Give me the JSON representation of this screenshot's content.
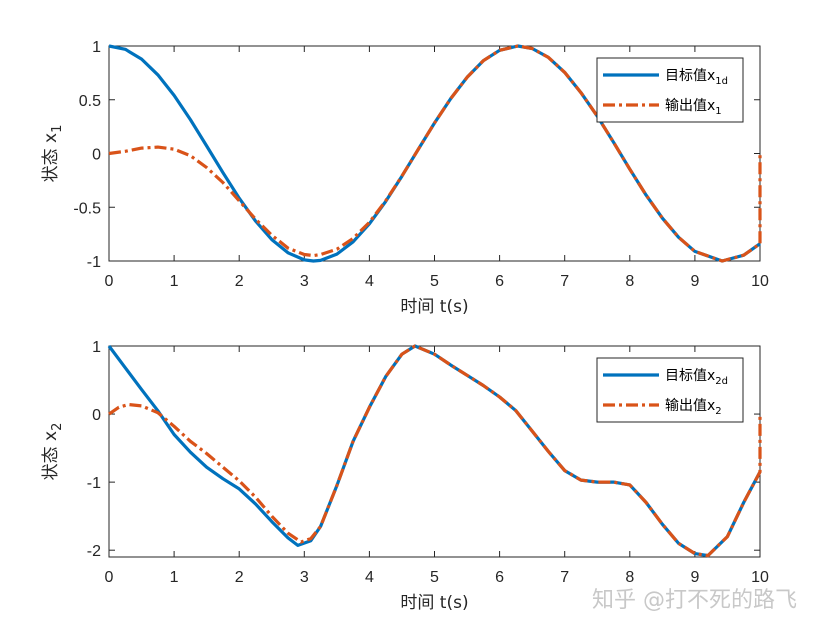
{
  "chart_data": [
    {
      "type": "line",
      "ylabel": "状态 x",
      "ylabel_sub": "1",
      "xlabel": "时间 t(s)",
      "xlim": [
        0,
        10
      ],
      "ylim": [
        -1,
        1
      ],
      "xticks": [
        "0",
        "1",
        "2",
        "3",
        "4",
        "5",
        "6",
        "7",
        "8",
        "9",
        "10"
      ],
      "yticks": [
        "1",
        "0.5",
        "0",
        "-0.5",
        "-1"
      ],
      "ytick_values": [
        1,
        0.5,
        0,
        -0.5,
        -1
      ],
      "legend_position": "top-right",
      "series": [
        {
          "name": "目标值x",
          "name_sub": "1d",
          "style": "solid",
          "color": "#0072BD",
          "x": [
            0,
            0.25,
            0.5,
            0.75,
            1,
            1.25,
            1.5,
            1.75,
            2,
            2.25,
            2.5,
            2.75,
            3,
            3.14,
            3.25,
            3.5,
            3.75,
            4,
            4.25,
            4.5,
            4.75,
            5,
            5.25,
            5.5,
            5.75,
            6,
            6.28,
            6.5,
            6.75,
            7,
            7.25,
            7.5,
            7.75,
            8,
            8.25,
            8.5,
            8.75,
            9,
            9.42,
            9.75,
            10
          ],
          "y": [
            1,
            0.969,
            0.878,
            0.732,
            0.54,
            0.315,
            0.071,
            -0.178,
            -0.416,
            -0.628,
            -0.801,
            -0.924,
            -0.99,
            -1,
            -0.994,
            -0.936,
            -0.821,
            -0.654,
            -0.446,
            -0.211,
            0.038,
            0.284,
            0.512,
            0.709,
            0.863,
            0.96,
            1,
            0.977,
            0.894,
            0.754,
            0.566,
            0.347,
            0.105,
            -0.146,
            -0.387,
            -0.602,
            -0.78,
            -0.911,
            -1,
            -0.946,
            -0.839
          ]
        },
        {
          "name": "输出值x",
          "name_sub": "1",
          "style": "dashdot",
          "color": "#D95319",
          "x": [
            0,
            0.25,
            0.5,
            0.75,
            1,
            1.25,
            1.5,
            1.75,
            2,
            2.25,
            2.5,
            2.75,
            3,
            3.14,
            3.25,
            3.5,
            3.75,
            4,
            4.25,
            4.5,
            4.75,
            5,
            5.25,
            5.5,
            5.75,
            6,
            6.28,
            6.5,
            6.75,
            7,
            7.25,
            7.5,
            7.75,
            8,
            8.25,
            8.5,
            8.75,
            9,
            9.42,
            9.75,
            10,
            10
          ],
          "y": [
            0,
            0.02,
            0.05,
            0.06,
            0.04,
            -0.02,
            -0.13,
            -0.27,
            -0.44,
            -0.61,
            -0.76,
            -0.88,
            -0.94,
            -0.95,
            -0.94,
            -0.89,
            -0.79,
            -0.64,
            -0.44,
            -0.21,
            0.038,
            0.284,
            0.512,
            0.709,
            0.863,
            0.96,
            1,
            0.977,
            0.894,
            0.754,
            0.566,
            0.347,
            0.105,
            -0.146,
            -0.387,
            -0.602,
            -0.78,
            -0.911,
            -1,
            -0.946,
            -0.839,
            0
          ]
        }
      ]
    },
    {
      "type": "line",
      "ylabel": "状态 x",
      "ylabel_sub": "2",
      "xlabel": "时间 t(s)",
      "xlim": [
        0,
        10
      ],
      "ylim": [
        -2.1,
        1
      ],
      "xticks": [
        "0",
        "1",
        "2",
        "3",
        "4",
        "5",
        "6",
        "7",
        "8",
        "9",
        "10"
      ],
      "yticks": [
        "1",
        "0",
        "-1",
        "-2"
      ],
      "ytick_values": [
        1,
        0,
        -1,
        -2
      ],
      "legend_position": "top-right",
      "series": [
        {
          "name": "目标值x",
          "name_sub": "2d",
          "style": "solid",
          "color": "#0072BD",
          "x": [
            0,
            0.25,
            0.5,
            0.75,
            1,
            1.25,
            1.5,
            1.75,
            2,
            2.25,
            2.5,
            2.75,
            2.9,
            3.1,
            3.25,
            3.5,
            3.75,
            4,
            4.25,
            4.5,
            4.7,
            5,
            5.25,
            5.5,
            5.75,
            6,
            6.25,
            6.5,
            6.75,
            7,
            7.25,
            7.5,
            7.75,
            8,
            8.25,
            8.5,
            8.75,
            9,
            9.2,
            9.5,
            9.75,
            10
          ],
          "y": [
            1,
            0.68,
            0.36,
            0.05,
            -0.3,
            -0.56,
            -0.78,
            -0.95,
            -1.1,
            -1.32,
            -1.58,
            -1.82,
            -1.93,
            -1.86,
            -1.65,
            -1.05,
            -0.4,
            0.1,
            0.55,
            0.88,
            1,
            0.88,
            0.72,
            0.57,
            0.42,
            0.25,
            0.05,
            -0.25,
            -0.55,
            -0.83,
            -0.97,
            -1.0,
            -1.0,
            -1.04,
            -1.3,
            -1.62,
            -1.9,
            -2.05,
            -2.08,
            -1.8,
            -1.3,
            -0.85
          ]
        },
        {
          "name": "输出值x",
          "name_sub": "2",
          "style": "dashdot",
          "color": "#D95319",
          "x": [
            0,
            0.15,
            0.3,
            0.5,
            0.75,
            1,
            1.25,
            1.5,
            1.75,
            2,
            2.25,
            2.5,
            2.75,
            2.95,
            3.1,
            3.25,
            3.5,
            3.75,
            4,
            4.25,
            4.5,
            4.7,
            5,
            5.25,
            5.5,
            5.75,
            6,
            6.25,
            6.5,
            6.75,
            7,
            7.25,
            7.5,
            7.75,
            8,
            8.25,
            8.5,
            8.75,
            9,
            9.2,
            9.5,
            9.75,
            10,
            10
          ],
          "y": [
            0,
            0.1,
            0.14,
            0.12,
            0.02,
            -0.18,
            -0.4,
            -0.58,
            -0.78,
            -0.98,
            -1.22,
            -1.5,
            -1.75,
            -1.88,
            -1.83,
            -1.65,
            -1.05,
            -0.4,
            0.1,
            0.55,
            0.88,
            1,
            0.88,
            0.72,
            0.57,
            0.42,
            0.25,
            0.05,
            -0.25,
            -0.55,
            -0.83,
            -0.97,
            -1.0,
            -1.0,
            -1.04,
            -1.3,
            -1.62,
            -1.9,
            -2.05,
            -2.08,
            -1.8,
            -1.3,
            -0.85,
            0
          ]
        }
      ]
    }
  ],
  "watermark": "知乎 @打不死的路飞"
}
